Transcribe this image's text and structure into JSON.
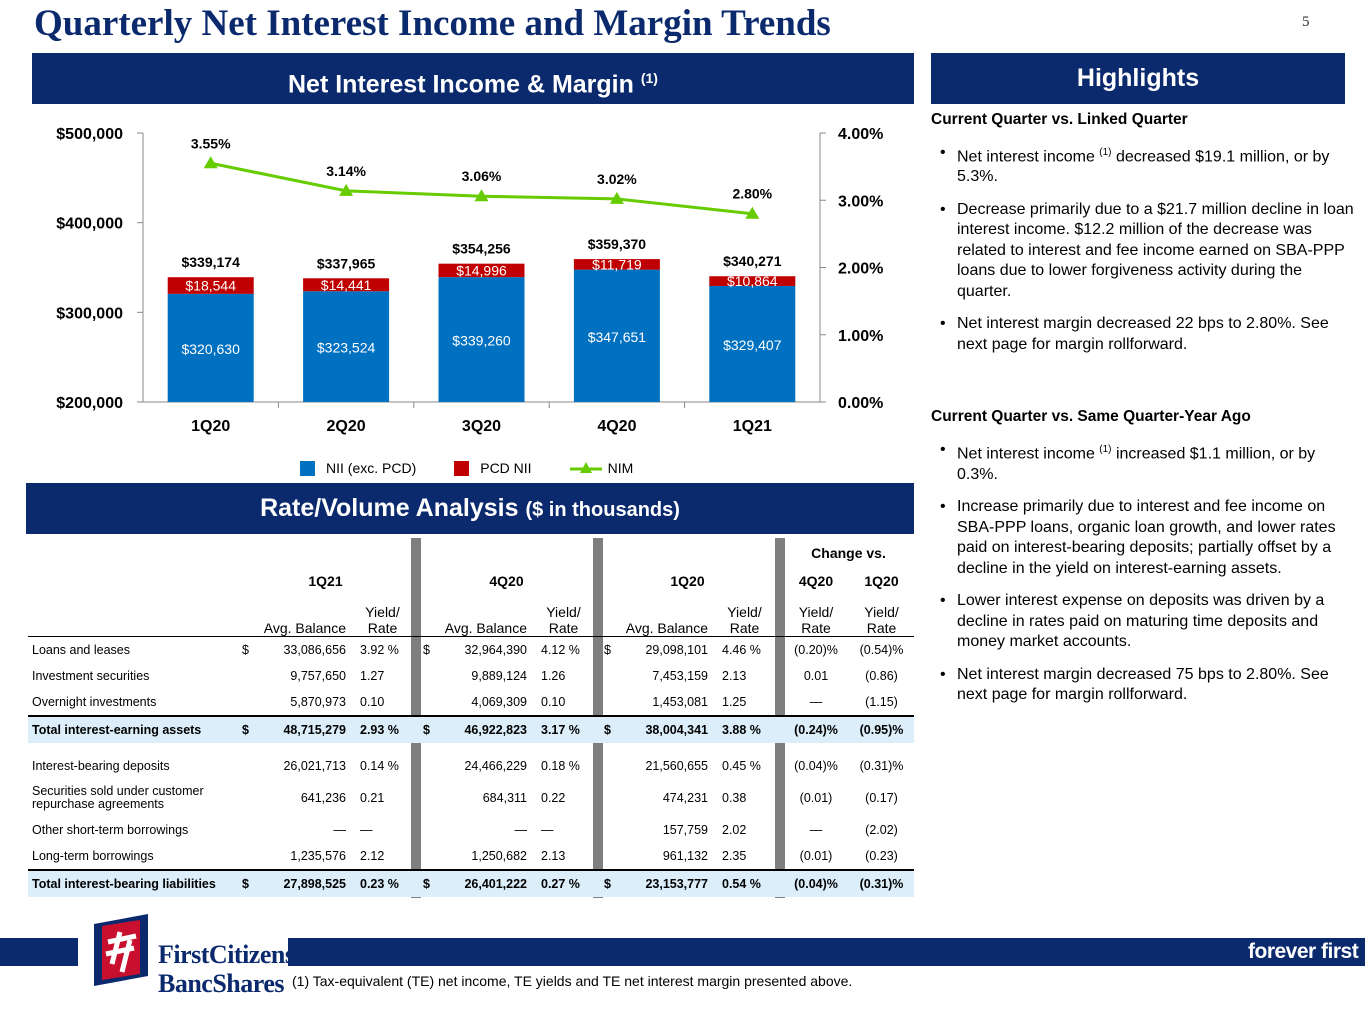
{
  "page": {
    "title": "Quarterly Net Interest Income and Margin Trends",
    "page_number": "5"
  },
  "chart_banner": {
    "title": "Net Interest Income & Margin",
    "sup": "(1)"
  },
  "chart_data": {
    "type": "bar",
    "stacked": true,
    "categories": [
      "1Q20",
      "2Q20",
      "3Q20",
      "4Q20",
      "1Q21"
    ],
    "series": [
      {
        "name": "NII (exc. PCD)",
        "color": "#0070c0",
        "values": [
          320630,
          323524,
          339260,
          347651,
          329407
        ],
        "labels": [
          "$320,630",
          "$323,524",
          "$339,260",
          "$347,651",
          "$329,407"
        ]
      },
      {
        "name": "PCD NII",
        "color": "#c00000",
        "values": [
          18544,
          14441,
          14996,
          11719,
          10864
        ],
        "labels": [
          "$18,544",
          "$14,441",
          "$14,996",
          "$11,719",
          "$10,864"
        ]
      }
    ],
    "totals": [
      "$339,174",
      "$337,965",
      "$354,256",
      "$359,370",
      "$340,271"
    ],
    "line": {
      "name": "NIM",
      "color": "#66cc00",
      "axis": "right",
      "values": [
        3.55,
        3.14,
        3.06,
        3.02,
        2.8
      ],
      "labels": [
        "3.55%",
        "3.14%",
        "3.06%",
        "3.02%",
        "2.80%"
      ]
    },
    "ylim": [
      200000,
      500000
    ],
    "y_ticks": [
      "$200,000",
      "$300,000",
      "$400,000",
      "$500,000"
    ],
    "y2lim": [
      0,
      4
    ],
    "y2_ticks": [
      "0.00%",
      "1.00%",
      "2.00%",
      "3.00%",
      "4.00%"
    ],
    "legend_position": "bottom"
  },
  "highlights": {
    "title": "Highlights",
    "sections": [
      {
        "heading": "Current Quarter vs. Linked Quarter",
        "bullets": [
          {
            "pre": "Net interest income ",
            "sup": "(1)",
            "post": " decreased $19.1 million, or by 5.3%."
          },
          {
            "pre": "Decrease primarily due to a $21.7 million decline in loan interest income. $12.2 million of the decrease was related to interest and fee income earned on SBA-PPP loans due to lower forgiveness activity during the quarter.",
            "sup": "",
            "post": ""
          },
          {
            "pre": "Net interest margin decreased 22 bps to 2.80%. See next page for margin rollforward.",
            "sup": "",
            "post": ""
          }
        ]
      },
      {
        "heading": "Current Quarter vs. Same Quarter-Year Ago",
        "bullets": [
          {
            "pre": "Net interest income ",
            "sup": "(1)",
            "post": " increased $1.1 million, or by 0.3%."
          },
          {
            "pre": "Increase primarily due to interest and fee income on SBA-PPP loans, organic loan growth, and lower rates paid on interest-bearing deposits; partially offset by a decline in the yield on interest-earning assets.",
            "sup": "",
            "post": ""
          },
          {
            "pre": "Lower interest expense on deposits was driven by a decline in rates paid on maturing time deposits and money market accounts.",
            "sup": "",
            "post": ""
          },
          {
            "pre": "Net interest margin decreased 75 bps to 2.80%. See next page for margin rollforward.",
            "sup": "",
            "post": ""
          }
        ]
      }
    ]
  },
  "rate_volume": {
    "title": "Rate/Volume Analysis",
    "title_suffix": "($ in thousands)",
    "change_vs": "Change vs.",
    "periods": [
      "1Q21",
      "4Q20",
      "1Q20"
    ],
    "change_periods": [
      "4Q20",
      "1Q20"
    ],
    "avg_balance": "Avg. Balance",
    "yield_rate": "Yield/\nRate",
    "rows": [
      {
        "label": "Loans and leases",
        "cells": [
          "$",
          "33,086,656",
          "3.92 %",
          "$",
          "32,964,390",
          "4.12 %",
          "$",
          "29,098,101",
          "4.46 %",
          "(0.20)%",
          "(0.54)%"
        ],
        "total": false
      },
      {
        "label": "Investment securities",
        "cells": [
          "",
          "9,757,650",
          "1.27",
          "",
          "9,889,124",
          "1.26",
          "",
          "7,453,159",
          "2.13",
          "0.01",
          "(0.86)"
        ],
        "total": false
      },
      {
        "label": "Overnight investments",
        "cells": [
          "",
          "5,870,973",
          "0.10",
          "",
          "4,069,309",
          "0.10",
          "",
          "1,453,081",
          "1.25",
          "—",
          "(1.15)"
        ],
        "total": false
      },
      {
        "label": "Total interest-earning assets",
        "cells": [
          "$",
          "48,715,279",
          "2.93 %",
          "$",
          "46,922,823",
          "3.17 %",
          "$",
          "38,004,341",
          "3.88 %",
          "(0.24)%",
          "(0.95)%"
        ],
        "total": true
      },
      {
        "label": "Interest-bearing deposits",
        "cells": [
          "",
          "26,021,713",
          "0.14 %",
          "",
          "24,466,229",
          "0.18 %",
          "",
          "21,560,655",
          "0.45 %",
          "(0.04)%",
          "(0.31)%"
        ],
        "total": false,
        "gap": true
      },
      {
        "label": "Securities sold under customer\nrepurchase agreements",
        "cells": [
          "",
          "641,236",
          "0.21",
          "",
          "684,311",
          "0.22",
          "",
          "474,231",
          "0.38",
          "(0.01)",
          "(0.17)"
        ],
        "total": false
      },
      {
        "label": "Other short-term borrowings",
        "cells": [
          "",
          "—",
          "—",
          "",
          "—",
          "—",
          "",
          "157,759",
          "2.02",
          "—",
          "(2.02)"
        ],
        "total": false
      },
      {
        "label": "Long-term borrowings",
        "cells": [
          "",
          "1,235,576",
          "2.12",
          "",
          "1,250,682",
          "2.13",
          "",
          "961,132",
          "2.35",
          "(0.01)",
          "(0.23)"
        ],
        "total": false
      },
      {
        "label": "Total interest-bearing liabilities",
        "cells": [
          "$",
          "27,898,525",
          "0.23 %",
          "$",
          "26,401,222",
          "0.27 %",
          "$",
          "23,153,777",
          "0.54 %",
          "(0.04)%",
          "(0.31)%"
        ],
        "total": true
      }
    ]
  },
  "footer": {
    "logo_line1": "FirstCitizens",
    "logo_line2": "BancShares",
    "tagline": "forever first",
    "footnote": "(1) Tax-equivalent (TE) net income, TE yields and TE net interest margin presented above."
  }
}
